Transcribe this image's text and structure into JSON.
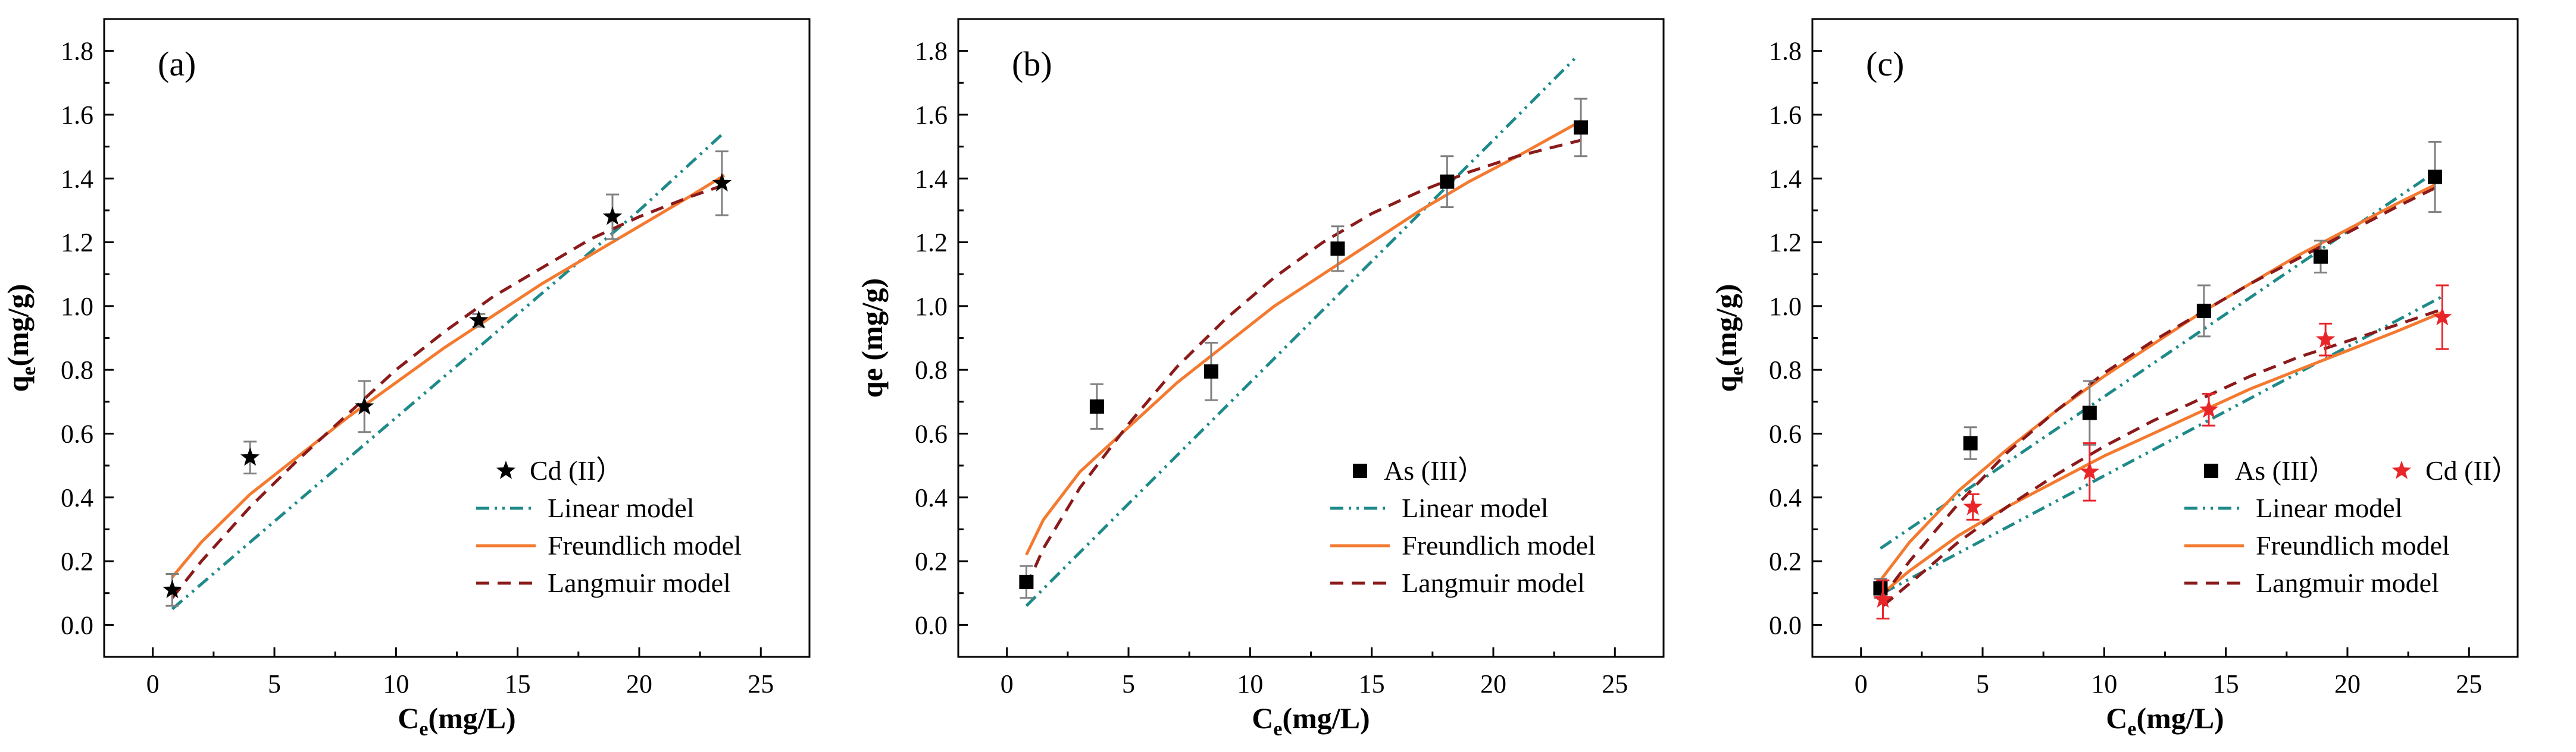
{
  "colors": {
    "linear": "#1f8a8a",
    "freundlich": "#f47a30",
    "langmuir": "#8b1a1a",
    "cd_c": "#e8262a",
    "black": "#000000",
    "error_bar": "#808080"
  },
  "chart_data": [
    {
      "type": "scatter",
      "panel_label": "(a)",
      "xlabel_main": "C",
      "xlabel_sub": "e",
      "xlabel_rest": "(mg/L)",
      "ylabel_main": "q",
      "ylabel_sub": "e",
      "ylabel_rest": "(mg/g)",
      "xlim": [
        -2,
        27
      ],
      "ylim": [
        -0.1,
        1.9
      ],
      "xticks": [
        0,
        5,
        10,
        15,
        20,
        25
      ],
      "xtick_labels": [
        "0",
        "5",
        "10",
        "15",
        "20",
        "25"
      ],
      "yticks": [
        0.0,
        0.2,
        0.4,
        0.6,
        0.8,
        1.0,
        1.2,
        1.4,
        1.6,
        1.8
      ],
      "ytick_labels": [
        "0.0",
        "0.2",
        "0.4",
        "0.6",
        "0.8",
        "1.0",
        "1.2",
        "1.4",
        "1.6",
        "1.8"
      ],
      "legend_position": "bottom-right",
      "legend_layout": "stacked",
      "series": [
        {
          "name": "Cd (II）",
          "marker": "star",
          "color": "#000000",
          "err_color": "#808080",
          "x": [
            0.8,
            4.0,
            8.7,
            13.4,
            18.9,
            23.4
          ],
          "y": [
            0.11,
            0.525,
            0.685,
            0.955,
            1.28,
            1.385
          ],
          "err": [
            0.05,
            0.05,
            0.08,
            0.02,
            0.07,
            0.1
          ]
        }
      ],
      "models": [
        {
          "name": "Linear model",
          "style": "dashdot",
          "color": "#1f8a8a",
          "x": [
            0.8,
            5,
            10,
            15,
            20,
            23.5
          ],
          "y": [
            0.05,
            0.325,
            0.65,
            0.975,
            1.3,
            1.545
          ]
        },
        {
          "name": "Freundlich model",
          "style": "solid",
          "color": "#f47a30",
          "x": [
            0.8,
            2,
            4,
            6,
            8,
            10,
            12,
            14,
            16,
            18,
            20,
            22,
            23.5
          ],
          "y": [
            0.15,
            0.26,
            0.41,
            0.53,
            0.65,
            0.76,
            0.87,
            0.97,
            1.07,
            1.16,
            1.25,
            1.34,
            1.41
          ]
        },
        {
          "name": "Langmuir  model",
          "style": "dashed",
          "color": "#8b1a1a",
          "x": [
            0.8,
            2,
            4,
            6,
            8,
            10,
            12,
            14,
            16,
            18,
            20,
            22,
            23.5
          ],
          "y": [
            0.085,
            0.2,
            0.37,
            0.52,
            0.66,
            0.8,
            0.92,
            1.03,
            1.12,
            1.21,
            1.28,
            1.34,
            1.38
          ]
        }
      ]
    },
    {
      "type": "scatter",
      "panel_label": "(b)",
      "xlabel_main": "C",
      "xlabel_sub": "e",
      "xlabel_rest": "(mg/L)",
      "ylabel_main": "qe (mg/g)",
      "ylabel_sub": "",
      "ylabel_rest": "",
      "xlim": [
        -2,
        27
      ],
      "ylim": [
        -0.1,
        1.9
      ],
      "xticks": [
        0,
        5,
        10,
        15,
        20,
        25
      ],
      "xtick_labels": [
        "0",
        "5",
        "10",
        "15",
        "20",
        "25"
      ],
      "yticks": [
        0.0,
        0.2,
        0.4,
        0.6,
        0.8,
        1.0,
        1.2,
        1.4,
        1.6,
        1.8
      ],
      "ytick_labels": [
        "0.0",
        "0.2",
        "0.4",
        "0.6",
        "0.8",
        "1.0",
        "1.2",
        "1.4",
        "1.6",
        "1.8"
      ],
      "legend_position": "bottom-right",
      "legend_layout": "stacked",
      "series": [
        {
          "name": "As (III）",
          "marker": "square",
          "color": "#000000",
          "err_color": "#808080",
          "x": [
            0.8,
            3.7,
            8.4,
            13.6,
            18.1,
            23.6
          ],
          "y": [
            0.135,
            0.685,
            0.795,
            1.18,
            1.39,
            1.56
          ],
          "err": [
            0.05,
            0.07,
            0.09,
            0.07,
            0.08,
            0.09
          ]
        }
      ],
      "models": [
        {
          "name": "Linear model",
          "style": "dashdot",
          "color": "#1f8a8a",
          "x": [
            0.8,
            5,
            10,
            15,
            20,
            23.4
          ],
          "y": [
            0.06,
            0.38,
            0.76,
            1.14,
            1.52,
            1.78
          ]
        },
        {
          "name": "Freundlich model",
          "style": "solid",
          "color": "#f47a30",
          "x": [
            0.8,
            1.5,
            3,
            5,
            7,
            9,
            11,
            13,
            15,
            17,
            19,
            21,
            23.6
          ],
          "y": [
            0.22,
            0.33,
            0.48,
            0.62,
            0.76,
            0.88,
            1.0,
            1.1,
            1.2,
            1.3,
            1.39,
            1.47,
            1.58
          ]
        },
        {
          "name": "Langmuir  model",
          "style": "dashed",
          "color": "#8b1a1a",
          "x": [
            0.8,
            1.5,
            3,
            5,
            7,
            9,
            11,
            13,
            15,
            17,
            19,
            21,
            23.6
          ],
          "y": [
            0.12,
            0.24,
            0.43,
            0.63,
            0.81,
            0.96,
            1.09,
            1.2,
            1.29,
            1.36,
            1.42,
            1.47,
            1.52
          ]
        }
      ]
    },
    {
      "type": "scatter",
      "panel_label": "(c)",
      "xlabel_main": "C",
      "xlabel_sub": "e",
      "xlabel_rest": "(mg/L)",
      "ylabel_main": "q",
      "ylabel_sub": "e",
      "ylabel_rest": "(mg/g)",
      "xlim": [
        -2,
        27
      ],
      "ylim": [
        -0.1,
        1.9
      ],
      "xticks": [
        0,
        5,
        10,
        15,
        20,
        25
      ],
      "xtick_labels": [
        "0",
        "5",
        "10",
        "15",
        "20",
        "25"
      ],
      "yticks": [
        0.0,
        0.2,
        0.4,
        0.6,
        0.8,
        1.0,
        1.2,
        1.4,
        1.6,
        1.8
      ],
      "ytick_labels": [
        "0.0",
        "0.2",
        "0.4",
        "0.6",
        "0.8",
        "1.0",
        "1.2",
        "1.4",
        "1.6",
        "1.8"
      ],
      "legend_position": "bottom-right",
      "legend_layout": "two-column-header",
      "series": [
        {
          "name": "As (III）",
          "marker": "square",
          "color": "#000000",
          "err_color": "#808080",
          "x": [
            0.8,
            4.5,
            9.4,
            14.1,
            18.9,
            23.6
          ],
          "y": [
            0.115,
            0.57,
            0.665,
            0.985,
            1.155,
            1.405
          ],
          "err": [
            0.03,
            0.05,
            0.1,
            0.08,
            0.05,
            0.11
          ]
        },
        {
          "name": "Cd (II）",
          "marker": "star",
          "color": "#e8262a",
          "err_color": "#e8262a",
          "x": [
            0.9,
            4.6,
            9.4,
            14.3,
            19.1,
            23.9
          ],
          "y": [
            0.08,
            0.37,
            0.48,
            0.675,
            0.895,
            0.965
          ],
          "err": [
            0.06,
            0.04,
            0.09,
            0.05,
            0.05,
            0.1
          ]
        }
      ],
      "models": [
        {
          "name": "Linear model",
          "style": "dashdot",
          "color": "#1f8a8a",
          "x": [
            0.8,
            23.6
          ],
          "y": [
            0.24,
            1.42
          ]
        },
        {
          "name": "Linear model",
          "style": "dashdot",
          "color": "#1f8a8a",
          "x": [
            0.9,
            23.9
          ],
          "y": [
            0.1,
            1.03
          ]
        },
        {
          "name": "Freundlich model",
          "style": "solid",
          "color": "#f47a30",
          "x": [
            0.8,
            2,
            4,
            6,
            8,
            10,
            12,
            14,
            16,
            18,
            20,
            22,
            23.6
          ],
          "y": [
            0.14,
            0.26,
            0.42,
            0.55,
            0.67,
            0.78,
            0.88,
            0.98,
            1.07,
            1.16,
            1.24,
            1.32,
            1.38
          ]
        },
        {
          "name": "Freundlich model",
          "style": "solid",
          "color": "#f47a30",
          "x": [
            0.9,
            2,
            4,
            6,
            8,
            10,
            12,
            14,
            16,
            18,
            20,
            22,
            23.9
          ],
          "y": [
            0.1,
            0.17,
            0.28,
            0.37,
            0.45,
            0.53,
            0.6,
            0.67,
            0.74,
            0.8,
            0.86,
            0.92,
            0.98
          ]
        },
        {
          "name": "Langmuir  model",
          "style": "dashed",
          "color": "#8b1a1a",
          "x": [
            0.8,
            2,
            4,
            6,
            8,
            10,
            12,
            14,
            16,
            18,
            20,
            22,
            23.6
          ],
          "y": [
            0.08,
            0.2,
            0.38,
            0.54,
            0.67,
            0.79,
            0.89,
            0.98,
            1.07,
            1.15,
            1.23,
            1.31,
            1.37
          ]
        },
        {
          "name": "Langmuir  model",
          "style": "dashed",
          "color": "#8b1a1a",
          "x": [
            0.9,
            2,
            4,
            6,
            8,
            10,
            12,
            14,
            16,
            18,
            20,
            22,
            23.9
          ],
          "y": [
            0.06,
            0.13,
            0.26,
            0.37,
            0.47,
            0.56,
            0.64,
            0.71,
            0.78,
            0.84,
            0.89,
            0.94,
            0.99
          ]
        }
      ],
      "legend_models": [
        "Linear model",
        "Freundlich model",
        "Langmuir model"
      ]
    }
  ]
}
